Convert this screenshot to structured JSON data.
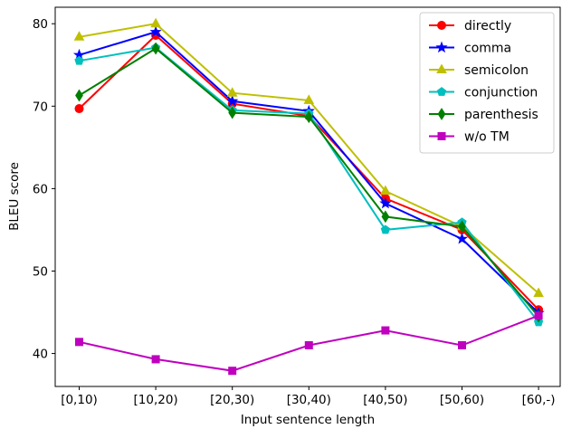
{
  "chart_data": {
    "type": "line",
    "xlabel": "Input sentence length",
    "ylabel": "BLEU score",
    "categories": [
      "[0,10)",
      "[10,20)",
      "[20,30)",
      "[30,40)",
      "[40,50)",
      "[50,60)",
      "[60,-)"
    ],
    "ylim": [
      36,
      82
    ],
    "yticks": [
      40,
      50,
      60,
      70,
      80
    ],
    "grid": false,
    "legend_position": "top-right",
    "series": [
      {
        "name": "directly",
        "color": "#ff0000",
        "marker": "circle",
        "values": [
          69.7,
          78.6,
          70.3,
          68.8,
          58.8,
          55.0,
          45.3
        ]
      },
      {
        "name": "comma",
        "color": "#0000ff",
        "marker": "star",
        "values": [
          76.2,
          79.0,
          70.6,
          69.4,
          58.2,
          53.9,
          44.9
        ]
      },
      {
        "name": "semicolon",
        "color": "#bfbf00",
        "marker": "triangle",
        "values": [
          78.4,
          80.0,
          71.6,
          70.7,
          59.7,
          55.4,
          47.3
        ]
      },
      {
        "name": "conjunction",
        "color": "#00bfbf",
        "marker": "pentagon",
        "values": [
          75.5,
          77.1,
          69.5,
          69.1,
          55.0,
          55.9,
          43.8
        ]
      },
      {
        "name": "parenthesis",
        "color": "#008000",
        "marker": "diamond",
        "values": [
          71.3,
          77.0,
          69.2,
          68.7,
          56.6,
          55.4,
          44.5
        ]
      },
      {
        "name": "w/o TM",
        "color": "#bf00bf",
        "marker": "square",
        "values": [
          41.4,
          39.3,
          37.9,
          41.0,
          42.8,
          41.0,
          44.6
        ]
      }
    ]
  }
}
